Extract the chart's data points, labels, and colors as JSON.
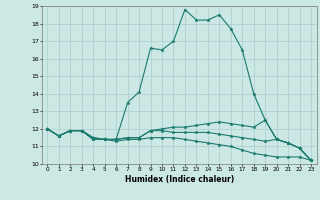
{
  "xlabel": "Humidex (Indice chaleur)",
  "xlim": [
    -0.5,
    23.5
  ],
  "ylim": [
    10,
    19
  ],
  "yticks": [
    10,
    11,
    12,
    13,
    14,
    15,
    16,
    17,
    18,
    19
  ],
  "xticks": [
    0,
    1,
    2,
    3,
    4,
    5,
    6,
    7,
    8,
    9,
    10,
    11,
    12,
    13,
    14,
    15,
    16,
    17,
    18,
    19,
    20,
    21,
    22,
    23
  ],
  "bg_color": "#cce8e4",
  "line_color": "#1a7a6e",
  "grid_color": "#aacccc",
  "series": [
    [
      12.0,
      11.6,
      11.9,
      11.9,
      11.5,
      11.4,
      11.4,
      13.5,
      14.1,
      16.6,
      16.5,
      17.0,
      18.8,
      18.2,
      18.2,
      18.5,
      17.7,
      16.5,
      14.0,
      12.5,
      11.4,
      11.2,
      10.9,
      10.2
    ],
    [
      12.0,
      11.6,
      11.9,
      11.9,
      11.5,
      11.4,
      11.4,
      11.5,
      11.5,
      11.9,
      12.0,
      12.1,
      12.1,
      12.2,
      12.3,
      12.4,
      12.3,
      12.2,
      12.1,
      12.5,
      11.4,
      11.2,
      10.9,
      10.2
    ],
    [
      12.0,
      11.6,
      11.9,
      11.9,
      11.4,
      11.4,
      11.4,
      11.5,
      11.5,
      11.9,
      11.9,
      11.8,
      11.8,
      11.8,
      11.8,
      11.7,
      11.6,
      11.5,
      11.4,
      11.3,
      11.4,
      11.2,
      10.9,
      10.2
    ],
    [
      12.0,
      11.6,
      11.9,
      11.9,
      11.4,
      11.4,
      11.3,
      11.4,
      11.4,
      11.5,
      11.5,
      11.5,
      11.4,
      11.3,
      11.2,
      11.1,
      11.0,
      10.8,
      10.6,
      10.5,
      10.4,
      10.4,
      10.4,
      10.2
    ]
  ]
}
